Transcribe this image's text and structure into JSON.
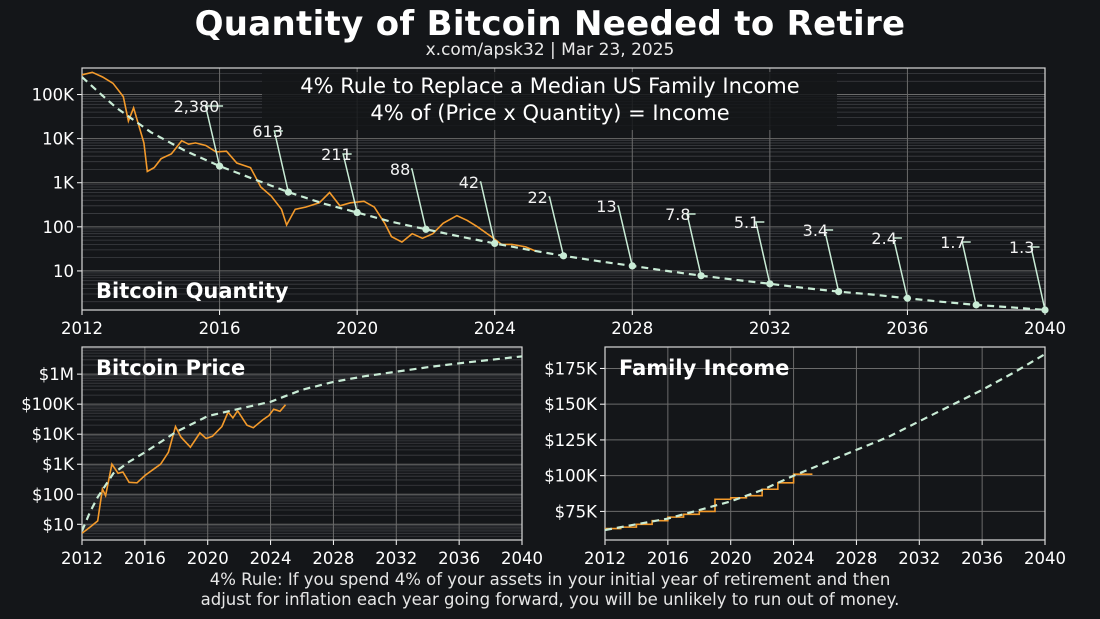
{
  "page": {
    "title": "Quantity of Bitcoin Needed to Retire",
    "subtitle": "x.com/apsk32 | Mar 23, 2025",
    "footer_line1": "4% Rule: If you spend 4% of your assets in your initial year of retirement and then",
    "footer_line2": "adjust for inflation each year going forward, you will be unlikely to run out of money."
  },
  "colors": {
    "background": "#141619",
    "history": "#f39a2b",
    "model": "#c9ecd6",
    "grid": "#6b6b6b",
    "text": "#ffffff"
  },
  "chart_data": [
    {
      "type": "line",
      "panel_label": "Bitcoin Quantity",
      "header_line1": "4% Rule to Replace a Median US Family Income",
      "header_line2": "4% of (Price x Quantity) = Income",
      "scale": "log",
      "xlim": [
        2012,
        2040
      ],
      "ylim": [
        1.3,
        400000
      ],
      "x_ticks": [
        2012,
        2016,
        2020,
        2024,
        2028,
        2032,
        2036,
        2040
      ],
      "y_ticks": [
        10,
        100,
        1000,
        10000,
        100000
      ],
      "y_tick_labels": [
        "10",
        "100",
        "1K",
        "10K",
        "100K"
      ],
      "grid": true,
      "annotations": [
        {
          "x": 2016,
          "value": 2380,
          "label": "2,380"
        },
        {
          "x": 2018,
          "value": 613,
          "label": "613"
        },
        {
          "x": 2020,
          "value": 211,
          "label": "211"
        },
        {
          "x": 2022,
          "value": 88,
          "label": "88"
        },
        {
          "x": 2024,
          "value": 42,
          "label": "42"
        },
        {
          "x": 2026,
          "value": 22,
          "label": "22"
        },
        {
          "x": 2028,
          "value": 13,
          "label": "13"
        },
        {
          "x": 2030,
          "value": 7.8,
          "label": "7.8"
        },
        {
          "x": 2032,
          "value": 5.1,
          "label": "5.1"
        },
        {
          "x": 2034,
          "value": 3.4,
          "label": "3.4"
        },
        {
          "x": 2036,
          "value": 2.4,
          "label": "2.4"
        },
        {
          "x": 2038,
          "value": 1.7,
          "label": "1.7"
        },
        {
          "x": 2040,
          "value": 1.3,
          "label": "1.3"
        }
      ],
      "model": {
        "x": [
          2012.0,
          2012.5,
          2013,
          2014,
          2015,
          2016,
          2017,
          2018,
          2019,
          2020,
          2021,
          2022,
          2023,
          2024,
          2025,
          2026,
          2027,
          2028,
          2029,
          2030,
          2031,
          2032,
          2033,
          2034,
          2035,
          2036,
          2037,
          2038,
          2039,
          2040
        ],
        "y": [
          250000,
          110000,
          50000,
          14000,
          5300,
          2380,
          1200,
          613,
          340,
          211,
          130,
          88,
          60,
          42,
          30,
          22,
          16.7,
          13,
          10,
          7.8,
          6.3,
          5.1,
          4.1,
          3.4,
          2.9,
          2.4,
          2.0,
          1.7,
          1.5,
          1.3
        ]
      },
      "history": {
        "x": [
          2012.0,
          2012.3,
          2012.6,
          2012.9,
          2013.2,
          2013.35,
          2013.5,
          2013.8,
          2013.9,
          2014.1,
          2014.3,
          2014.6,
          2014.9,
          2015.1,
          2015.3,
          2015.6,
          2015.9,
          2016.2,
          2016.5,
          2016.9,
          2017.2,
          2017.5,
          2017.8,
          2017.95,
          2018.2,
          2018.5,
          2018.9,
          2019.2,
          2019.5,
          2019.8,
          2020.2,
          2020.5,
          2020.8,
          2021.0,
          2021.3,
          2021.6,
          2021.9,
          2022.2,
          2022.5,
          2022.9,
          2023.2,
          2023.5,
          2023.9,
          2024.2,
          2024.5,
          2024.9,
          2025.2
        ],
        "y": [
          280000,
          320000,
          250000,
          180000,
          90000,
          25000,
          50000,
          8000,
          1800,
          2200,
          3500,
          4500,
          9000,
          7500,
          8000,
          7000,
          5000,
          5200,
          2800,
          2200,
          800,
          500,
          250,
          110,
          250,
          280,
          350,
          600,
          300,
          350,
          380,
          280,
          120,
          60,
          45,
          70,
          55,
          70,
          120,
          180,
          140,
          100,
          60,
          40,
          40,
          35,
          28
        ]
      }
    },
    {
      "type": "line",
      "panel_label": "Bitcoin Price",
      "scale": "log",
      "xlim": [
        2012,
        2040
      ],
      "ylim": [
        3,
        8000000
      ],
      "x_ticks": [
        2012,
        2016,
        2020,
        2024,
        2028,
        2032,
        2036,
        2040
      ],
      "y_ticks": [
        10,
        100,
        1000,
        10000,
        100000,
        1000000
      ],
      "y_tick_labels": [
        "$10",
        "$100",
        "$1K",
        "$10K",
        "$100K",
        "$1M"
      ],
      "grid": true,
      "model": {
        "x": [
          2012.0,
          2012.5,
          2013,
          2014,
          2015,
          2016,
          2018,
          2020,
          2022,
          2024,
          2026,
          2028,
          2030,
          2032,
          2034,
          2036,
          2038,
          2040
        ],
        "y": [
          6,
          25,
          80,
          500,
          1200,
          2500,
          12000,
          40000,
          70000,
          120000,
          300000,
          550000,
          850000,
          1200000,
          1700000,
          2300000,
          3000000,
          3900000
        ]
      },
      "history": {
        "x": [
          2012.0,
          2012.5,
          2013.0,
          2013.3,
          2013.5,
          2013.9,
          2014.3,
          2014.6,
          2015.0,
          2015.5,
          2016.0,
          2016.5,
          2017.0,
          2017.5,
          2017.95,
          2018.3,
          2018.9,
          2019.5,
          2019.9,
          2020.3,
          2020.9,
          2021.3,
          2021.6,
          2021.9,
          2022.5,
          2022.9,
          2023.5,
          2023.9,
          2024.2,
          2024.6,
          2024.95
        ],
        "y": [
          5,
          8,
          13,
          150,
          90,
          1000,
          500,
          550,
          250,
          240,
          420,
          650,
          1000,
          2500,
          18000,
          8000,
          3700,
          11000,
          7200,
          8500,
          18000,
          55000,
          35000,
          60000,
          20000,
          16500,
          30000,
          42000,
          68000,
          58000,
          95000
        ]
      }
    },
    {
      "type": "line",
      "panel_label": "Family Income",
      "scale": "linear",
      "xlim": [
        2012,
        2040
      ],
      "ylim": [
        55000,
        190000
      ],
      "x_ticks": [
        2012,
        2016,
        2020,
        2024,
        2028,
        2032,
        2036,
        2040
      ],
      "y_ticks": [
        75000,
        100000,
        125000,
        150000,
        175000
      ],
      "y_tick_labels": [
        "$75K",
        "$100K",
        "$125K",
        "$150K",
        "$175K"
      ],
      "grid": true,
      "model": {
        "x": [
          2012,
          2014,
          2016,
          2018,
          2020,
          2022,
          2024,
          2026,
          2028,
          2030,
          2032,
          2034,
          2036,
          2038,
          2040
        ],
        "y": [
          62000,
          66000,
          70000,
          76000,
          82000,
          90000,
          100000,
          109000,
          118000,
          127000,
          138000,
          149000,
          160000,
          172000,
          185000
        ]
      },
      "history": {
        "x": [
          2012,
          2013,
          2014,
          2015,
          2016,
          2017,
          2018,
          2019,
          2020,
          2021,
          2022,
          2023,
          2024,
          2025.2
        ],
        "y": [
          63000,
          64000,
          66000,
          68500,
          71000,
          73000,
          75000,
          83500,
          84500,
          86000,
          90500,
          95000,
          101000,
          101000
        ]
      }
    }
  ]
}
